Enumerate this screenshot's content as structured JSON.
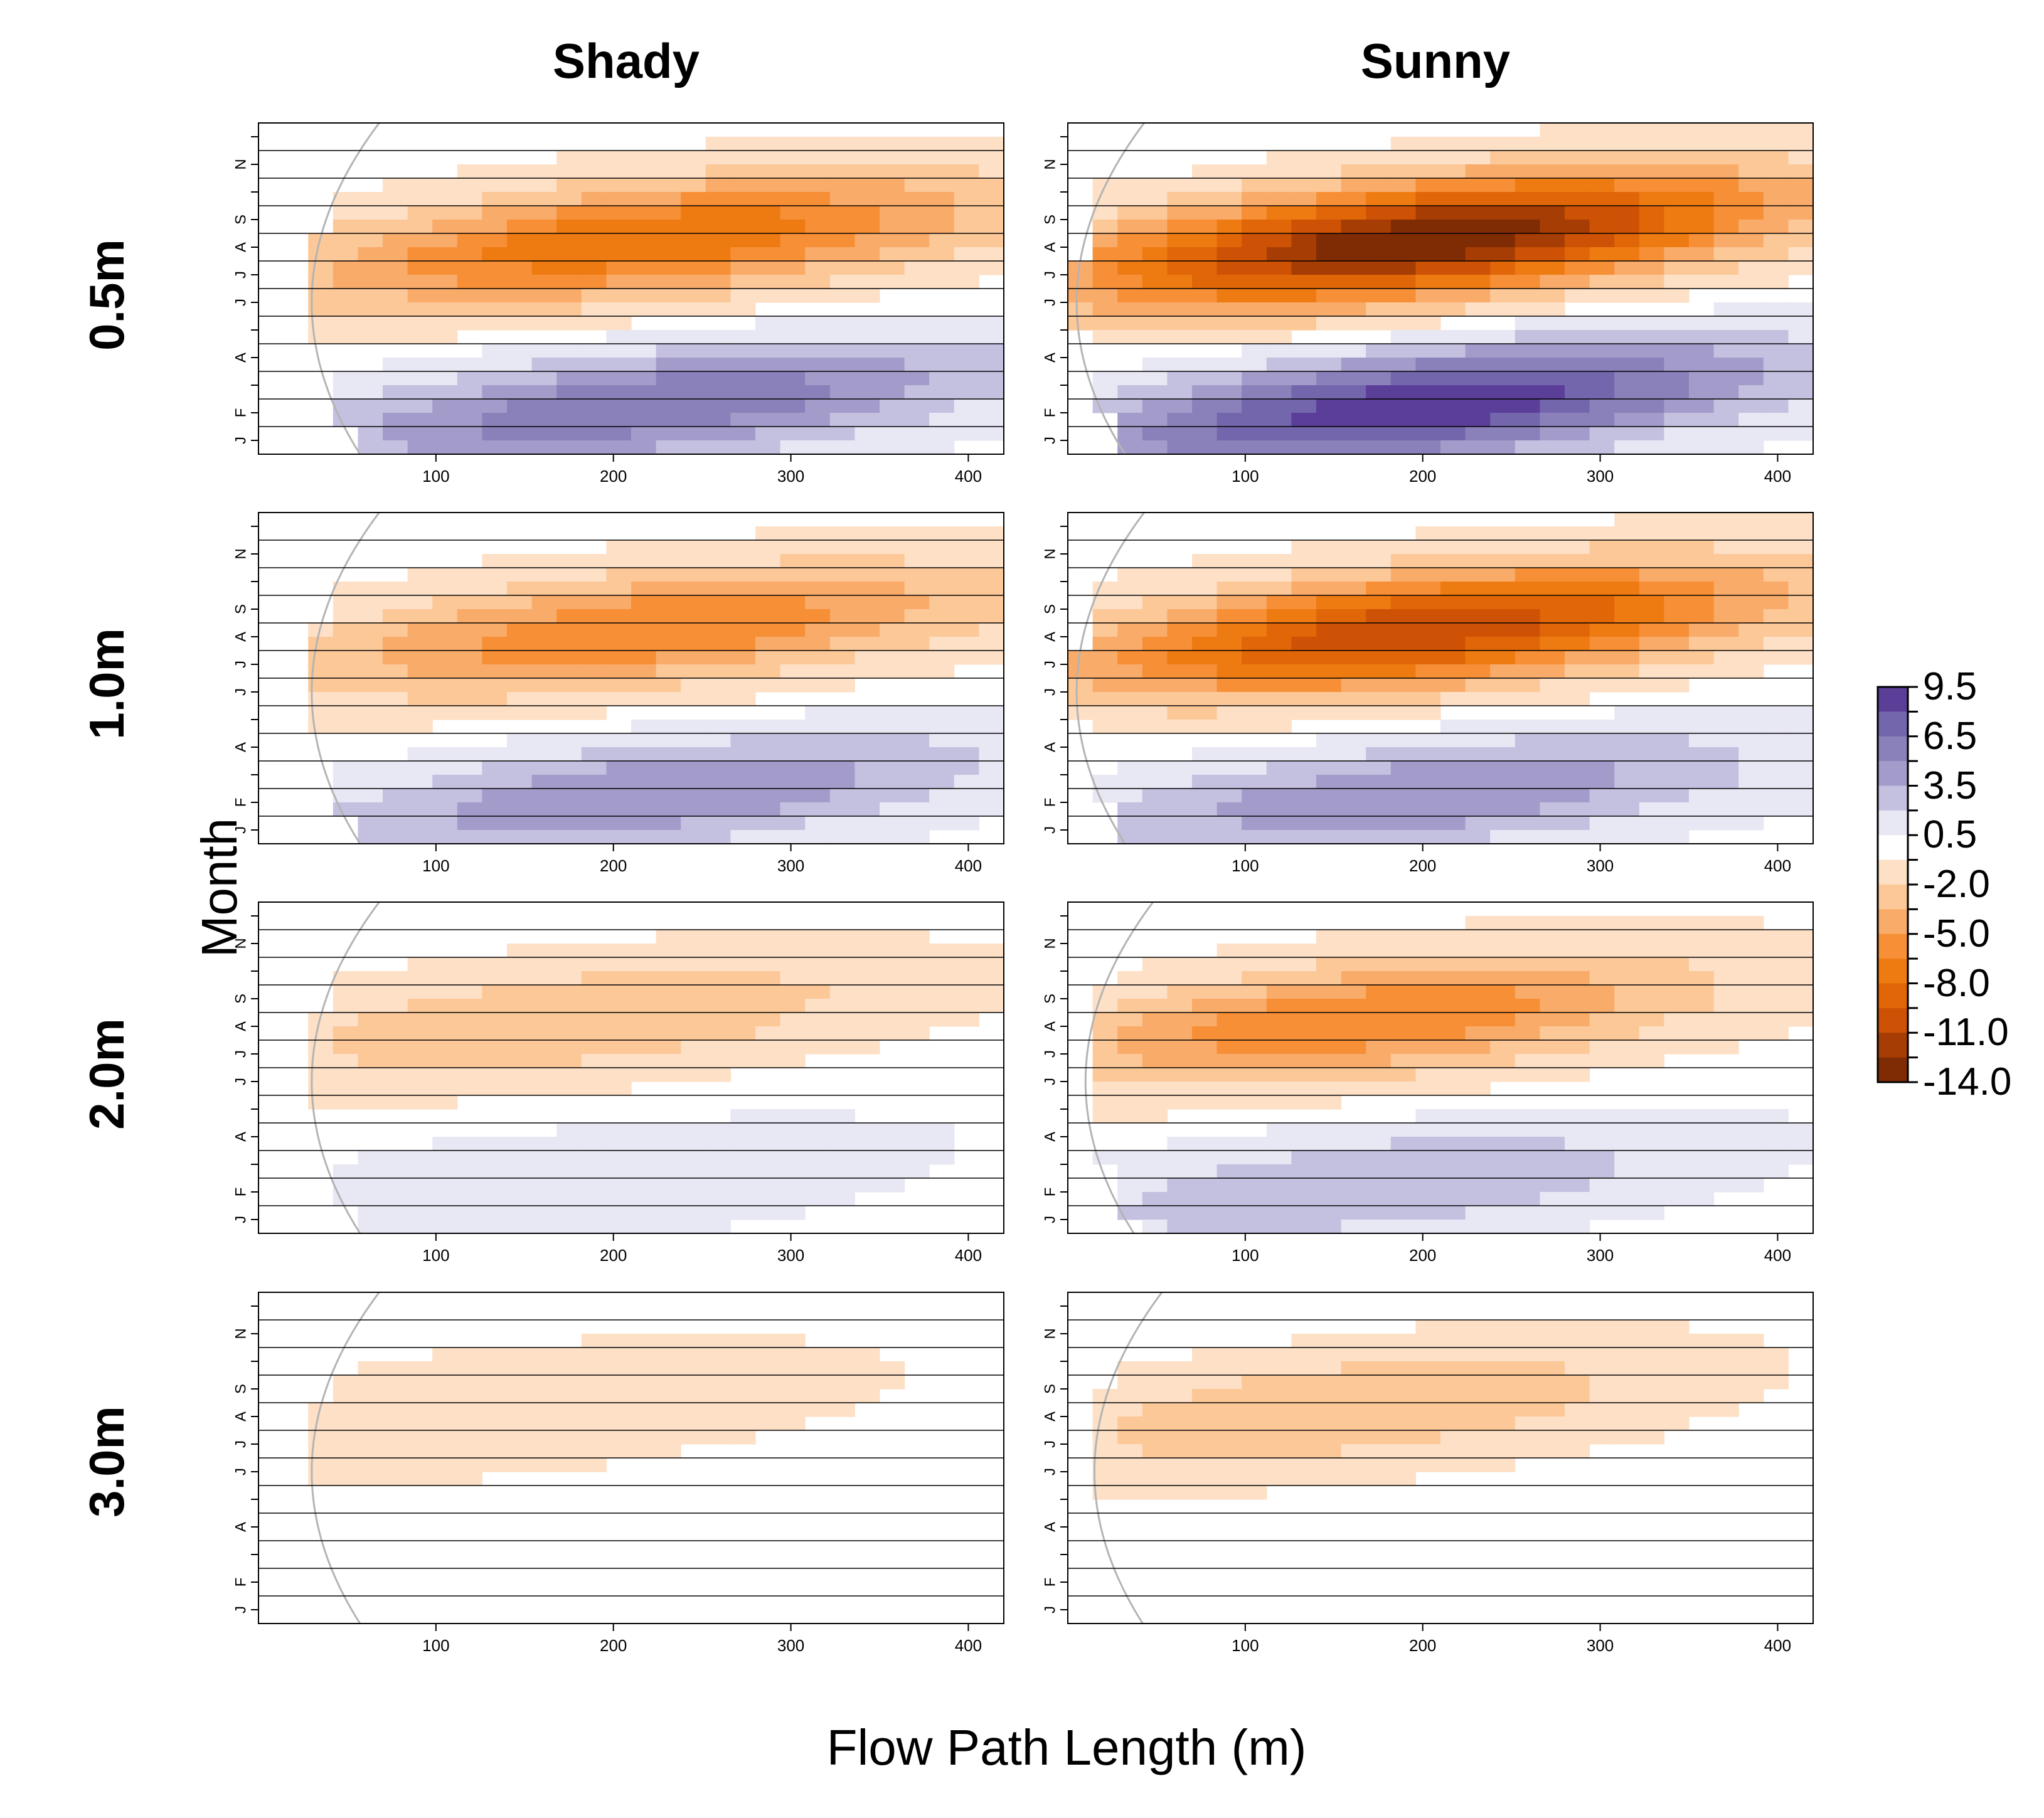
{
  "chart_data": {
    "type": "heatmap",
    "xlabel": "Flow Path Length (m)",
    "ylabel": "Month",
    "columns": [
      "Shady",
      "Sunny"
    ],
    "rows": [
      "0.5m",
      "1.0m",
      "2.0m",
      "3.0m"
    ],
    "xlim": [
      0,
      420
    ],
    "x_ticks": [
      100,
      200,
      300,
      400
    ],
    "month_ticks": [
      "J",
      "F",
      "A",
      "J",
      "J",
      "A",
      "S",
      "N"
    ],
    "month_tick_rows": [
      0,
      1,
      3,
      5,
      6,
      7,
      8,
      10
    ],
    "n_month_rows": 12,
    "legend": {
      "levels": [
        9.5,
        8.0,
        6.5,
        5.0,
        3.5,
        2.0,
        0.5,
        -0.5,
        -2.0,
        -3.5,
        -5.0,
        -6.5,
        -8.0,
        -9.5,
        -11.0,
        -12.5,
        -14.0
      ],
      "labels": [
        "9.5",
        "6.5",
        "3.5",
        "0.5",
        "-2.0",
        "-5.0",
        "-8.0",
        "-11.0",
        "-14.0"
      ],
      "colors": [
        "#5b3e98",
        "#7466ad",
        "#8a81ba",
        "#a39cca",
        "#c4c0e0",
        "#e8e7f4",
        "#ffffff",
        "#fde0c6",
        "#fcc898",
        "#f9ab6a",
        "#f68f36",
        "#ee7b12",
        "#e06608",
        "#cd5205",
        "#a63d04",
        "#7f2b03"
      ]
    },
    "panels": [
      {
        "column": "Shady",
        "depth": "0.5m",
        "peak_negative": -8.0,
        "peak_positive": 6.5,
        "x_peak": 220,
        "boundary_x_min": 30
      },
      {
        "column": "Sunny",
        "depth": "0.5m",
        "peak_negative": -14.0,
        "peak_positive": 9.5,
        "x_peak": 200,
        "boundary_x_min": 5
      },
      {
        "column": "Shady",
        "depth": "1.0m",
        "peak_negative": -6.5,
        "peak_positive": 5.0,
        "x_peak": 220,
        "boundary_x_min": 30
      },
      {
        "column": "Sunny",
        "depth": "1.0m",
        "peak_negative": -11.0,
        "peak_positive": 5.0,
        "x_peak": 200,
        "boundary_x_min": 5
      },
      {
        "column": "Shady",
        "depth": "2.0m",
        "peak_negative": -3.5,
        "peak_positive": 2.0,
        "x_peak": 180,
        "boundary_x_min": 30
      },
      {
        "column": "Sunny",
        "depth": "2.0m",
        "peak_negative": -6.5,
        "peak_positive": 3.5,
        "x_peak": 170,
        "boundary_x_min": 10
      },
      {
        "column": "Shady",
        "depth": "3.0m",
        "peak_negative": -2.0,
        "peak_positive": 0.5,
        "x_peak": 150,
        "boundary_x_min": 30
      },
      {
        "column": "Sunny",
        "depth": "3.0m",
        "peak_negative": -3.5,
        "peak_positive": 0.5,
        "x_peak": 160,
        "boundary_x_min": 15
      }
    ]
  }
}
